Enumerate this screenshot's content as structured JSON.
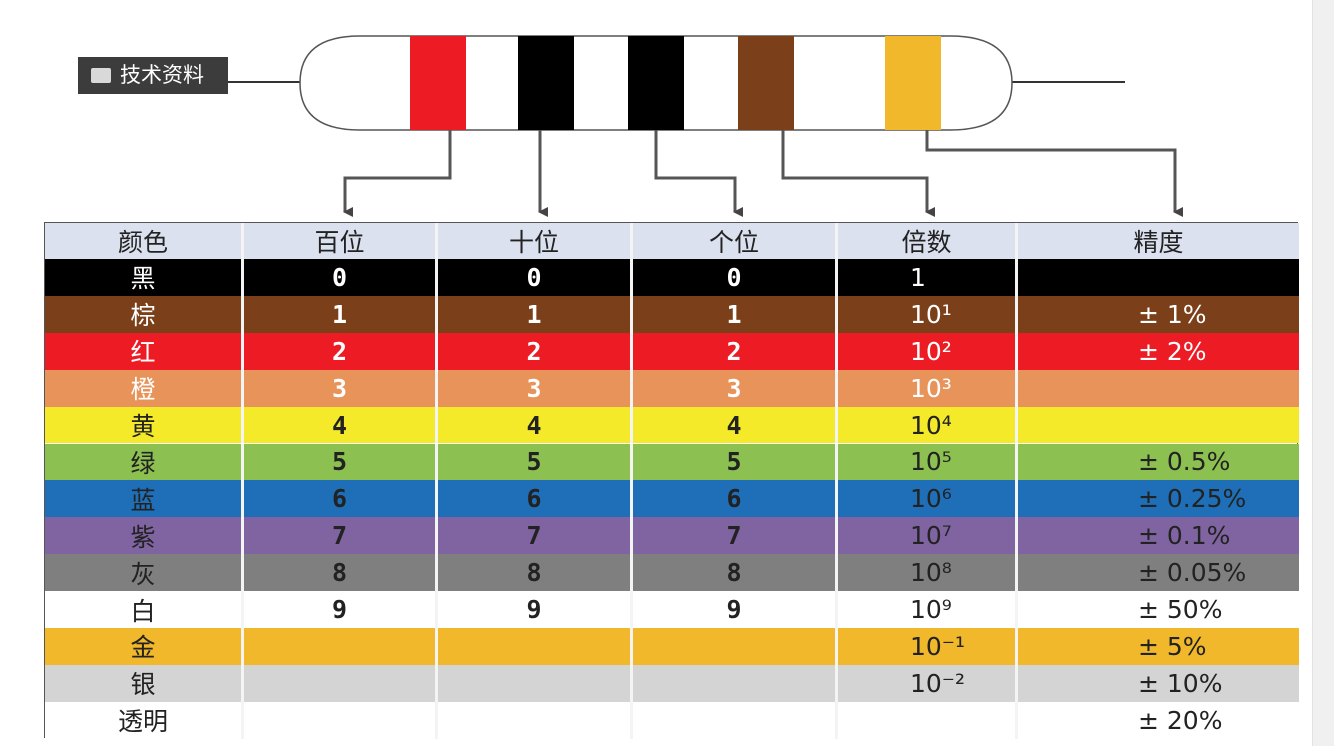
{
  "tag": "技术资料",
  "table": {
    "header": [
      "颜色",
      "百位",
      "十位",
      "个位",
      "倍数",
      "精度"
    ],
    "rows": [
      [
        "黑",
        "0",
        "0",
        "0",
        "1",
        null
      ],
      [
        "棕",
        "1",
        "1",
        "1",
        "10¹",
        "± 1%"
      ],
      [
        "红",
        "2",
        "2",
        "2",
        "10²",
        "± 2%"
      ],
      [
        "橙",
        "3",
        "3",
        "3",
        "10³",
        null
      ],
      [
        "黄",
        "4",
        "4",
        "4",
        "10⁴",
        null
      ],
      [
        "绿",
        "5",
        "5",
        "5",
        "10⁵",
        "± 0.5%"
      ],
      [
        "蓝",
        "6",
        "6",
        "6",
        "10⁶",
        "± 0.25%"
      ],
      [
        "紫",
        "7",
        "7",
        "7",
        "10⁷",
        "± 0.1%"
      ],
      [
        "灰",
        "8",
        "8",
        "8",
        "10⁸",
        "± 0.05%"
      ],
      [
        "白",
        "9",
        "9",
        "9",
        "10⁹",
        "± 50%"
      ],
      [
        "金",
        null,
        null,
        null,
        "10⁻¹",
        "± 5%"
      ],
      [
        "银",
        null,
        null,
        null,
        "10⁻²",
        "± 10%"
      ],
      [
        "透明",
        null,
        null,
        null,
        null,
        "± 20%"
      ]
    ]
  }
}
